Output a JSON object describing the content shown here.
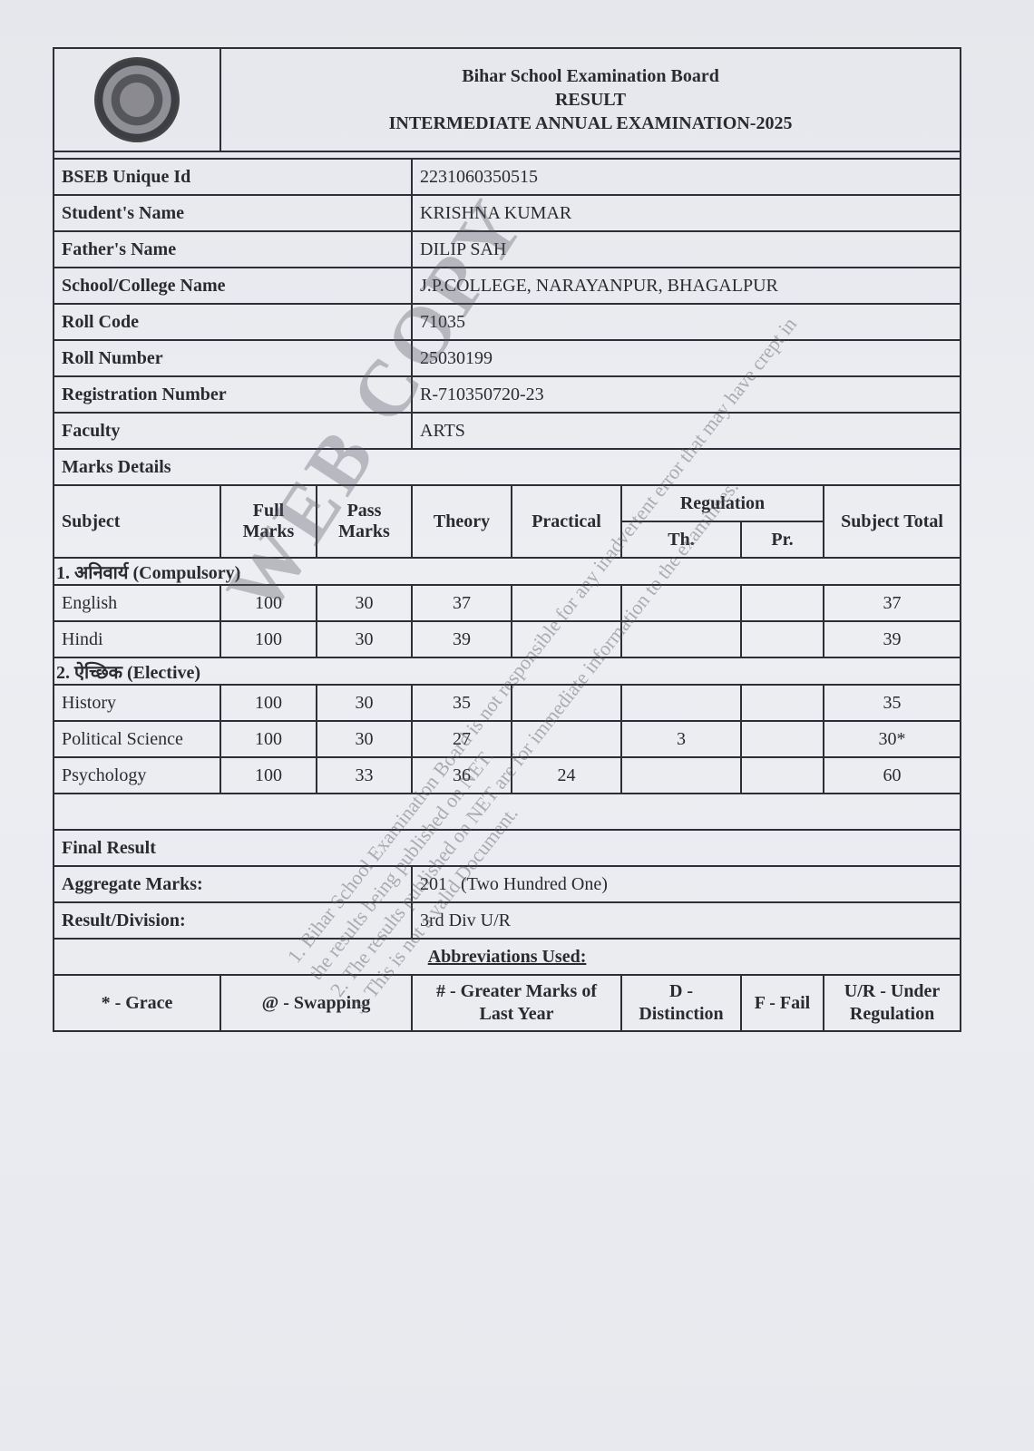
{
  "header": {
    "board": "Bihar School Examination Board",
    "result": "RESULT",
    "exam": "INTERMEDIATE ANNUAL EXAMINATION-2025"
  },
  "info": [
    {
      "label": "BSEB Unique Id",
      "value": "2231060350515"
    },
    {
      "label": "Student's Name",
      "value": "KRISHNA KUMAR"
    },
    {
      "label": "Father's Name",
      "value": "DILIP SAH"
    },
    {
      "label": "School/College Name",
      "value": "J.P.COLLEGE, NARAYANPUR, BHAGALPUR"
    },
    {
      "label": "Roll Code",
      "value": "71035"
    },
    {
      "label": "Roll Number",
      "value": "25030199"
    },
    {
      "label": "Registration Number",
      "value": "R-710350720-23"
    },
    {
      "label": "Faculty",
      "value": "ARTS"
    }
  ],
  "marks": {
    "title": "Marks Details",
    "columns": {
      "subject": "Subject",
      "full": "Full Marks",
      "pass": "Pass Marks",
      "theory": "Theory",
      "practical": "Practical",
      "regulation": "Regulation",
      "th": "Th.",
      "pr": "Pr.",
      "total": "Subject Total"
    },
    "compulsory_label": "1. अनिवार्य (Compulsory)",
    "compulsory": [
      {
        "subject": "English",
        "full": "100",
        "pass": "30",
        "theory": "37",
        "practical": "",
        "reg_th": "",
        "reg_pr": "",
        "total": "37"
      },
      {
        "subject": "Hindi",
        "full": "100",
        "pass": "30",
        "theory": "39",
        "practical": "",
        "reg_th": "",
        "reg_pr": "",
        "total": "39"
      }
    ],
    "elective_label": "2. ऐच्छिक (Elective)",
    "elective": [
      {
        "subject": "History",
        "full": "100",
        "pass": "30",
        "theory": "35",
        "practical": "",
        "reg_th": "",
        "reg_pr": "",
        "total": "35"
      },
      {
        "subject": "Political Science",
        "full": "100",
        "pass": "30",
        "theory": "27",
        "practical": "",
        "reg_th": "3",
        "reg_pr": "",
        "total": "30*"
      },
      {
        "subject": "Psychology",
        "full": "100",
        "pass": "33",
        "theory": "36",
        "practical": "24",
        "reg_th": "",
        "reg_pr": "",
        "total": "60"
      }
    ]
  },
  "final": {
    "title": "Final Result",
    "aggregate_label": "Aggregate Marks:",
    "aggregate_value": "201",
    "aggregate_words": "(Two Hundred One)",
    "division_label": "Result/Division:",
    "division_value": "3rd Div U/R"
  },
  "abbreviations": {
    "title": "Abbreviations Used:",
    "items": [
      "* - Grace",
      "@ - Swapping",
      "# - Greater Marks of Last Year",
      "D - Distinction",
      "F - Fail",
      "U/R - Under Regulation"
    ]
  },
  "watermark": {
    "text": "WEB COPY",
    "notes": [
      "1. Bihar School Examination Board is not responsible for any inadvertent error that may have crept in the results being published on NET.",
      "2. The results published on NET are for immediate information to the examinees.",
      "3. This is not a valid Document."
    ]
  }
}
